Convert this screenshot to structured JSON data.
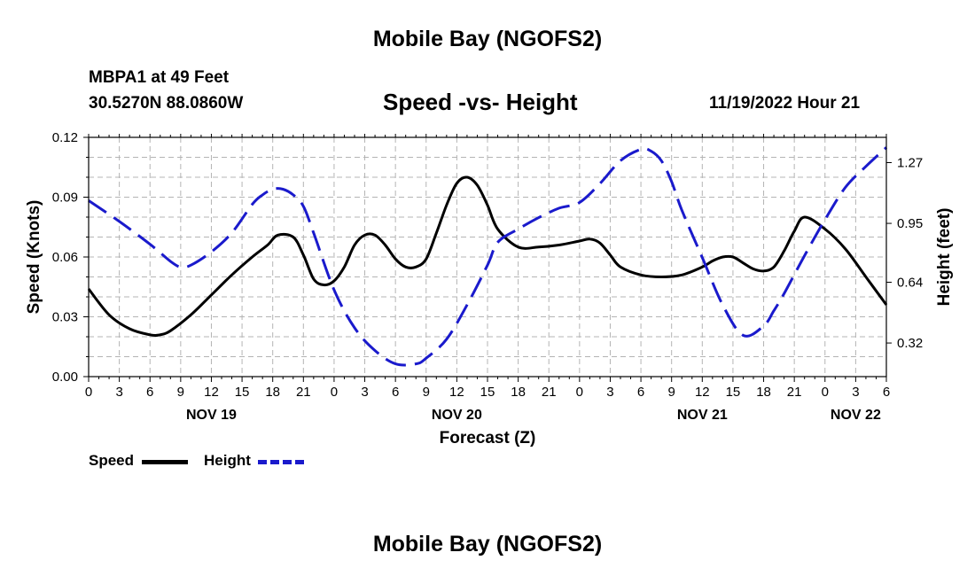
{
  "page": {
    "title_top": "Mobile Bay (NGOFS2)",
    "title_bottom": "Mobile Bay (NGOFS2)",
    "station": "MBPA1 at 49 Feet",
    "coords": "30.5270N  88.0860W",
    "subtitle": "Speed -vs- Height",
    "datetime": "11/19/2022 Hour 21"
  },
  "legend": {
    "speed_label": "Speed",
    "height_label": "Height"
  },
  "colors": {
    "speed": "#000000",
    "height": "#1a1acc",
    "grid": "#b4b4b4"
  },
  "chart_data": {
    "type": "line",
    "xlabel": "Forecast (Z)",
    "ylabel": "Speed (Knots)",
    "ylabel_right": "Height (feet)",
    "x_unit": "forecast hours from 11/19/2022 00Z",
    "xlim": [
      0,
      78
    ],
    "ylim": [
      0,
      0.12
    ],
    "ylim_right": [
      0.143,
      1.403
    ],
    "grid": true,
    "x_ticks": [
      0,
      3,
      6,
      9,
      12,
      15,
      18,
      21,
      24,
      27,
      30,
      33,
      36,
      39,
      42,
      45,
      48,
      51,
      54,
      57,
      60,
      63,
      66,
      69,
      72,
      75,
      78
    ],
    "x_tick_labels": [
      "0",
      "3",
      "6",
      "9",
      "12",
      "15",
      "18",
      "21",
      "0",
      "3",
      "6",
      "9",
      "12",
      "15",
      "18",
      "21",
      "0",
      "3",
      "6",
      "9",
      "12",
      "15",
      "18",
      "21",
      "0",
      "3",
      "6"
    ],
    "day_labels": [
      {
        "x": 12,
        "label": "NOV 19"
      },
      {
        "x": 36,
        "label": "NOV 20"
      },
      {
        "x": 60,
        "label": "NOV 21"
      },
      {
        "x": 75,
        "label": "NOV 22"
      }
    ],
    "y_ticks": [
      0.0,
      0.03,
      0.06,
      0.09,
      0.12
    ],
    "y_tick_labels": [
      "0.00",
      "0.03",
      "0.06",
      "0.09",
      "0.12"
    ],
    "y_ticks_right": [
      0.32,
      0.64,
      0.95,
      1.27
    ],
    "y_tick_labels_right": [
      "0.32",
      "0.64",
      "0.95",
      "1.27"
    ],
    "series": [
      {
        "name": "Speed",
        "axis": "left",
        "style": "solid",
        "x": [
          0,
          2,
          4,
          6,
          7,
          8,
          10,
          12,
          14,
          16,
          17.5,
          18.5,
          20,
          21,
          22,
          23,
          24,
          25,
          26,
          27,
          28,
          29,
          30,
          31,
          32,
          33,
          34,
          35,
          36,
          37,
          38,
          39,
          40,
          42,
          44,
          46,
          48,
          49,
          50,
          51,
          52,
          54,
          56,
          58,
          60,
          61,
          62,
          63,
          64,
          65,
          66,
          67,
          68,
          69,
          70,
          72,
          74,
          76,
          78
        ],
        "values": [
          0.044,
          0.031,
          0.024,
          0.021,
          0.021,
          0.023,
          0.031,
          0.041,
          0.051,
          0.06,
          0.066,
          0.071,
          0.07,
          0.061,
          0.049,
          0.046,
          0.048,
          0.055,
          0.066,
          0.071,
          0.071,
          0.066,
          0.059,
          0.055,
          0.055,
          0.059,
          0.072,
          0.086,
          0.097,
          0.1,
          0.096,
          0.086,
          0.074,
          0.065,
          0.065,
          0.066,
          0.068,
          0.069,
          0.067,
          0.061,
          0.055,
          0.051,
          0.05,
          0.051,
          0.055,
          0.058,
          0.06,
          0.06,
          0.057,
          0.054,
          0.053,
          0.055,
          0.063,
          0.073,
          0.08,
          0.074,
          0.064,
          0.05,
          0.036
        ]
      },
      {
        "name": "Height",
        "axis": "right",
        "style": "dashed",
        "x": [
          0,
          3,
          6,
          8,
          9,
          10,
          12,
          14,
          16,
          17,
          18,
          19,
          20,
          21,
          22,
          24,
          26,
          28,
          30,
          32,
          33,
          35,
          37,
          39,
          40,
          42,
          44,
          46,
          48,
          50,
          52,
          54,
          55,
          56,
          57,
          58,
          60,
          62,
          64,
          66,
          67,
          68,
          70,
          72,
          74,
          76,
          78
        ],
        "values": [
          1.07,
          0.96,
          0.84,
          0.75,
          0.72,
          0.73,
          0.8,
          0.9,
          1.05,
          1.1,
          1.13,
          1.13,
          1.1,
          1.04,
          0.9,
          0.6,
          0.4,
          0.28,
          0.21,
          0.21,
          0.24,
          0.34,
          0.52,
          0.73,
          0.85,
          0.92,
          0.98,
          1.03,
          1.06,
          1.16,
          1.28,
          1.34,
          1.33,
          1.28,
          1.17,
          1.02,
          0.77,
          0.52,
          0.36,
          0.41,
          0.49,
          0.58,
          0.78,
          0.97,
          1.14,
          1.25,
          1.35
        ]
      }
    ]
  }
}
